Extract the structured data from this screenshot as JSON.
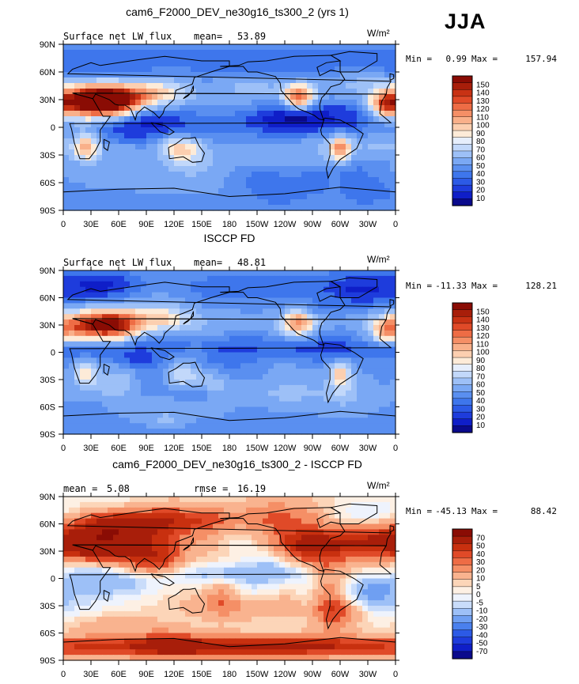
{
  "season": "JJA",
  "colorbar_palette": {
    "standard": [
      "#0a0a8c",
      "#0f1ec8",
      "#1e3cdc",
      "#2c5ae6",
      "#3e76ec",
      "#5a8ff0",
      "#7aa8f4",
      "#9dc0f7",
      "#c2d8fa",
      "#e6eefc",
      "#fdebd8",
      "#fccfb0",
      "#f9b08a",
      "#f58f66",
      "#ee6c45",
      "#e04a28",
      "#c83214",
      "#a81e0a",
      "#8a0c04"
    ],
    "diff": [
      "#0a0a8c",
      "#0f1ec8",
      "#1e3cdc",
      "#2c5ae6",
      "#4a80ee",
      "#6f9ff2",
      "#9dc0f7",
      "#c9dcfa",
      "#eef3fd",
      "#fdf0e4",
      "#fcd5b8",
      "#f9b38f",
      "#f58f66",
      "#ee6c45",
      "#e04a28",
      "#c8300f",
      "#a81e0a",
      "#8a0c04"
    ]
  },
  "chart_data": [
    {
      "type": "heatmap",
      "name": "model",
      "title": "cam6_F2000_DEV_ne30g16_ts300_2 (yrs 1)",
      "left_label": "Surface net LW flux",
      "stat1_label": "mean=",
      "stat1_value": "53.89",
      "stat2_label": "",
      "stat2_value": "",
      "units": "W/m²",
      "min_label": "Min =",
      "min_value": "0.99",
      "max_label": "Max =",
      "max_value": "157.94",
      "colorbar_levels": [
        "150",
        "140",
        "130",
        "120",
        "110",
        "100",
        "90",
        "80",
        "70",
        "60",
        "50",
        "40",
        "30",
        "20",
        "10"
      ],
      "palette": "standard",
      "vmin": 10,
      "vmax": 150,
      "x_ticks": [
        "0",
        "30E",
        "60E",
        "90E",
        "120E",
        "150E",
        "180",
        "150W",
        "120W",
        "90W",
        "60W",
        "30W",
        "0"
      ],
      "y_ticks": [
        "90N",
        "60N",
        "30N",
        "0",
        "30S",
        "60S",
        "90S"
      ],
      "xlim": [
        0,
        360
      ],
      "ylim": [
        -90,
        90
      ]
    },
    {
      "type": "heatmap",
      "name": "obs",
      "title": "ISCCP FD",
      "left_label": "Surface net LW flux",
      "stat1_label": "mean=",
      "stat1_value": "48.81",
      "stat2_label": "",
      "stat2_value": "",
      "units": "W/m²",
      "min_label": "Min =",
      "min_value": "-11.33",
      "max_label": "Max =",
      "max_value": "128.21",
      "colorbar_levels": [
        "150",
        "140",
        "130",
        "120",
        "110",
        "100",
        "90",
        "80",
        "70",
        "60",
        "50",
        "40",
        "30",
        "20",
        "10"
      ],
      "palette": "standard",
      "vmin": 10,
      "vmax": 150,
      "x_ticks": [
        "0",
        "30E",
        "60E",
        "90E",
        "120E",
        "150E",
        "180",
        "150W",
        "120W",
        "90W",
        "60W",
        "30W",
        "0"
      ],
      "y_ticks": [
        "90N",
        "60N",
        "30N",
        "0",
        "30S",
        "60S",
        "90S"
      ],
      "xlim": [
        0,
        360
      ],
      "ylim": [
        -90,
        90
      ]
    },
    {
      "type": "heatmap",
      "name": "diff",
      "title": "cam6_F2000_DEV_ne30g16_ts300_2 - ISCCP FD",
      "left_label": "",
      "stat1_label": "mean =",
      "stat1_value": "5.08",
      "stat2_label": "rmse =",
      "stat2_value": "16.19",
      "units": "W/m²",
      "min_label": "Min =",
      "min_value": "-45.13",
      "max_label": "Max =",
      "max_value": "88.42",
      "colorbar_levels": [
        "70",
        "50",
        "40",
        "30",
        "20",
        "10",
        "5",
        "0",
        "-5",
        "-10",
        "-20",
        "-30",
        "-40",
        "-50",
        "-70"
      ],
      "palette": "diff",
      "vmin": -70,
      "vmax": 70,
      "x_ticks": [
        "0",
        "30E",
        "60E",
        "90E",
        "120E",
        "150E",
        "180",
        "150W",
        "120W",
        "90W",
        "60W",
        "30W",
        "0"
      ],
      "y_ticks": [
        "90N",
        "60N",
        "30N",
        "0",
        "30S",
        "60S",
        "90S"
      ],
      "xlim": [
        0,
        360
      ],
      "ylim": [
        -90,
        90
      ]
    }
  ]
}
